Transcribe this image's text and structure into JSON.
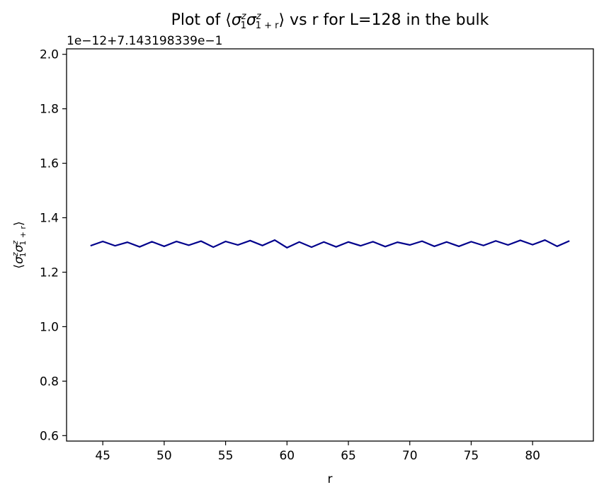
{
  "chart_data": {
    "type": "line",
    "title": {
      "prefix": "Plot of ⟨",
      "sig1": "σ",
      "sup1": "z",
      "sub1": "1",
      "sig2": "σ",
      "sup2": "z",
      "sub2": "1 + r",
      "suffix": "⟩ vs r for L=128 in the bulk"
    },
    "xlabel": "r",
    "ylabel": {
      "open": "⟨",
      "sig1": "σ",
      "sup1": "z",
      "sub1": "1",
      "sig2": "σ",
      "sup2": "z",
      "sub2": "1 + r",
      "close": "⟩"
    },
    "y_offset_text": "1e−12+7.143198339e−1",
    "x_ticks": [
      45,
      50,
      55,
      60,
      65,
      70,
      75,
      80
    ],
    "y_ticks": [
      "0.6",
      "0.8",
      "1.0",
      "1.2",
      "1.4",
      "1.6",
      "1.8",
      "2.0"
    ],
    "xlim": [
      42.05,
      84.95
    ],
    "ylim": [
      0.58,
      2.02
    ],
    "grid": false,
    "series": [
      {
        "color": "#00008b",
        "x": [
          44,
          45,
          46,
          47,
          48,
          49,
          50,
          51,
          52,
          53,
          54,
          55,
          56,
          57,
          58,
          59,
          60,
          61,
          62,
          63,
          64,
          65,
          66,
          67,
          68,
          69,
          70,
          71,
          72,
          73,
          74,
          75,
          76,
          77,
          78,
          79,
          80,
          81,
          82,
          83
        ],
        "y": [
          1.297,
          1.313,
          1.297,
          1.31,
          1.293,
          1.312,
          1.295,
          1.313,
          1.299,
          1.314,
          1.292,
          1.313,
          1.3,
          1.316,
          1.298,
          1.318,
          1.29,
          1.311,
          1.292,
          1.311,
          1.293,
          1.311,
          1.297,
          1.312,
          1.294,
          1.31,
          1.3,
          1.314,
          1.295,
          1.311,
          1.295,
          1.312,
          1.298,
          1.315,
          1.3,
          1.317,
          1.301,
          1.318,
          1.295,
          1.315
        ]
      }
    ]
  }
}
